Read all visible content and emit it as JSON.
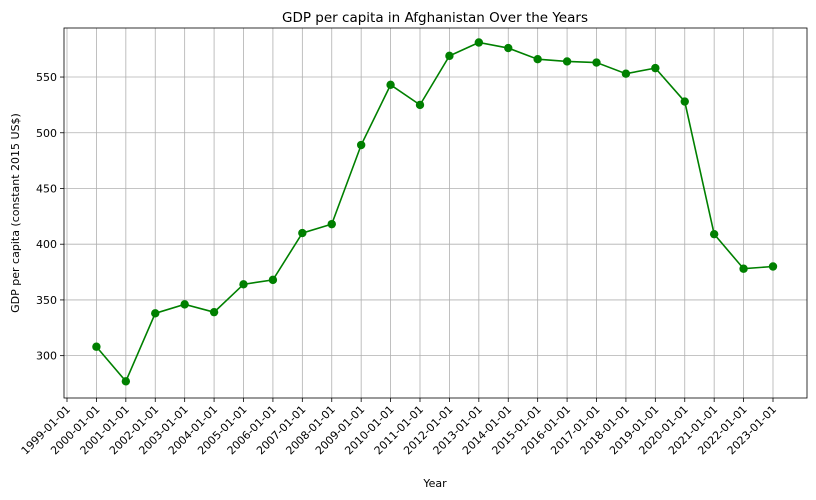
{
  "chart_data": {
    "type": "line",
    "title": "GDP per capita in Afghanistan Over the Years",
    "xlabel": "Year",
    "ylabel": "GDP per capita (constant 2015 US$)",
    "x": [
      "2000-01-01",
      "2001-01-01",
      "2002-01-01",
      "2003-01-01",
      "2004-01-01",
      "2005-01-01",
      "2006-01-01",
      "2007-01-01",
      "2008-01-01",
      "2009-01-01",
      "2010-01-01",
      "2011-01-01",
      "2012-01-01",
      "2013-01-01",
      "2014-01-01",
      "2015-01-01",
      "2016-01-01",
      "2017-01-01",
      "2018-01-01",
      "2019-01-01",
      "2020-01-01",
      "2021-01-01",
      "2022-01-01",
      "2023-01-01"
    ],
    "x_tick_labels": [
      "1999-01-01",
      "2000-01-01",
      "2001-01-01",
      "2002-01-01",
      "2003-01-01",
      "2004-01-01",
      "2005-01-01",
      "2006-01-01",
      "2007-01-01",
      "2008-01-01",
      "2009-01-01",
      "2010-01-01",
      "2011-01-01",
      "2012-01-01",
      "2013-01-01",
      "2014-01-01",
      "2015-01-01",
      "2016-01-01",
      "2017-01-01",
      "2018-01-01",
      "2019-01-01",
      "2020-01-01",
      "2021-01-01",
      "2022-01-01",
      "2023-01-01"
    ],
    "y_ticks": [
      300,
      350,
      400,
      450,
      500,
      550
    ],
    "ylim": [
      262,
      594
    ],
    "grid": true,
    "series": [
      {
        "values": [
          308,
          277,
          338,
          346,
          339,
          364,
          368,
          410,
          418,
          489,
          543,
          525,
          569,
          581,
          576,
          566,
          564,
          563,
          553,
          558,
          528,
          409,
          378,
          380
        ],
        "color": "#008000",
        "marker": "circle"
      }
    ]
  }
}
